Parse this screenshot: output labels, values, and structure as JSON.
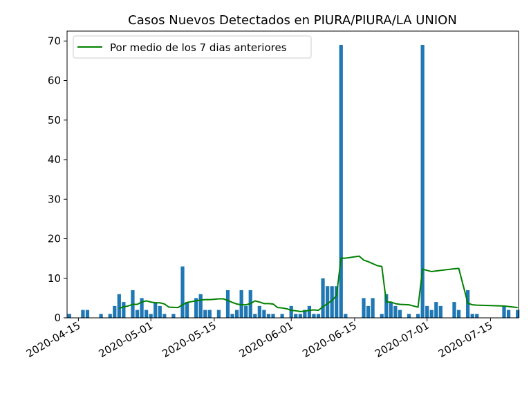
{
  "chart_data": {
    "type": "bar",
    "title": "Casos Nuevos Detectados en PIURA/PIURA/LA UNION",
    "xlabel": "",
    "ylabel": "",
    "x_start": "2020-04-13",
    "x_end": "2020-07-21",
    "ylim": [
      0,
      72.5
    ],
    "yticks": [
      0,
      10,
      20,
      30,
      40,
      50,
      60,
      70
    ],
    "xticks": [
      "2020-04-15",
      "2020-05-01",
      "2020-05-15",
      "2020-06-01",
      "2020-06-15",
      "2020-07-01",
      "2020-07-15"
    ],
    "bar_color": "#1f77b4",
    "line_color": "#008000",
    "grid": false,
    "legend_position": "upper-left",
    "series": [
      {
        "type": "bar",
        "name": "",
        "points": [
          [
            "2020-04-13",
            1
          ],
          [
            "2020-04-16",
            2
          ],
          [
            "2020-04-17",
            2
          ],
          [
            "2020-04-20",
            1
          ],
          [
            "2020-04-22",
            1
          ],
          [
            "2020-04-23",
            3
          ],
          [
            "2020-04-24",
            6
          ],
          [
            "2020-04-25",
            4
          ],
          [
            "2020-04-27",
            7
          ],
          [
            "2020-04-28",
            2
          ],
          [
            "2020-04-29",
            5
          ],
          [
            "2020-04-30",
            2
          ],
          [
            "2020-05-01",
            1
          ],
          [
            "2020-05-02",
            4
          ],
          [
            "2020-05-03",
            3
          ],
          [
            "2020-05-04",
            1
          ],
          [
            "2020-05-06",
            1
          ],
          [
            "2020-05-08",
            13
          ],
          [
            "2020-05-09",
            4
          ],
          [
            "2020-05-11",
            5
          ],
          [
            "2020-05-12",
            6
          ],
          [
            "2020-05-13",
            2
          ],
          [
            "2020-05-14",
            2
          ],
          [
            "2020-05-16",
            2
          ],
          [
            "2020-05-18",
            7
          ],
          [
            "2020-05-19",
            1
          ],
          [
            "2020-05-20",
            2
          ],
          [
            "2020-05-21",
            7
          ],
          [
            "2020-05-22",
            3
          ],
          [
            "2020-05-23",
            7
          ],
          [
            "2020-05-24",
            1
          ],
          [
            "2020-05-25",
            3
          ],
          [
            "2020-05-26",
            2
          ],
          [
            "2020-05-27",
            1
          ],
          [
            "2020-05-28",
            1
          ],
          [
            "2020-05-30",
            1
          ],
          [
            "2020-06-01",
            3
          ],
          [
            "2020-06-02",
            1
          ],
          [
            "2020-06-03",
            1
          ],
          [
            "2020-06-04",
            2
          ],
          [
            "2020-06-05",
            3
          ],
          [
            "2020-06-06",
            1
          ],
          [
            "2020-06-07",
            1
          ],
          [
            "2020-06-08",
            10
          ],
          [
            "2020-06-09",
            8
          ],
          [
            "2020-06-10",
            8
          ],
          [
            "2020-06-11",
            8
          ],
          [
            "2020-06-12",
            69
          ],
          [
            "2020-06-13",
            1
          ],
          [
            "2020-06-15",
            0
          ],
          [
            "2020-06-17",
            5
          ],
          [
            "2020-06-18",
            3
          ],
          [
            "2020-06-19",
            5
          ],
          [
            "2020-06-21",
            1
          ],
          [
            "2020-06-22",
            6
          ],
          [
            "2020-06-23",
            4
          ],
          [
            "2020-06-24",
            3
          ],
          [
            "2020-06-25",
            2
          ],
          [
            "2020-06-27",
            1
          ],
          [
            "2020-06-29",
            1
          ],
          [
            "2020-06-30",
            69
          ],
          [
            "2020-07-01",
            3
          ],
          [
            "2020-07-02",
            2
          ],
          [
            "2020-07-03",
            4
          ],
          [
            "2020-07-04",
            3
          ],
          [
            "2020-07-07",
            4
          ],
          [
            "2020-07-08",
            2
          ],
          [
            "2020-07-10",
            7
          ],
          [
            "2020-07-11",
            1
          ],
          [
            "2020-07-12",
            1
          ],
          [
            "2020-07-18",
            3
          ],
          [
            "2020-07-19",
            2
          ],
          [
            "2020-07-21",
            2
          ]
        ]
      },
      {
        "type": "line",
        "name": "Por medio de los 7 dias anteriores",
        "points": [
          [
            "2020-04-24",
            2.4
          ],
          [
            "2020-04-25",
            2.8
          ],
          [
            "2020-04-26",
            3.0
          ],
          [
            "2020-04-27",
            3.4
          ],
          [
            "2020-04-28",
            3.4
          ],
          [
            "2020-04-29",
            4.0
          ],
          [
            "2020-04-30",
            4.3
          ],
          [
            "2020-05-01",
            4.0
          ],
          [
            "2020-05-02",
            3.8
          ],
          [
            "2020-05-03",
            3.8
          ],
          [
            "2020-05-04",
            3.5
          ],
          [
            "2020-05-05",
            2.7
          ],
          [
            "2020-05-07",
            2.6
          ],
          [
            "2020-05-08",
            3.3
          ],
          [
            "2020-05-09",
            3.9
          ],
          [
            "2020-05-11",
            4.3
          ],
          [
            "2020-05-12",
            4.5
          ],
          [
            "2020-05-13",
            4.6
          ],
          [
            "2020-05-14",
            4.6
          ],
          [
            "2020-05-15",
            4.7
          ],
          [
            "2020-05-16",
            4.8
          ],
          [
            "2020-05-17",
            4.8
          ],
          [
            "2020-05-18",
            4.4
          ],
          [
            "2020-05-19",
            3.9
          ],
          [
            "2020-05-20",
            3.5
          ],
          [
            "2020-05-21",
            3.3
          ],
          [
            "2020-05-22",
            3.3
          ],
          [
            "2020-05-23",
            3.6
          ],
          [
            "2020-05-24",
            4.3
          ],
          [
            "2020-05-25",
            4.0
          ],
          [
            "2020-05-26",
            3.6
          ],
          [
            "2020-05-27",
            3.6
          ],
          [
            "2020-05-28",
            3.5
          ],
          [
            "2020-05-29",
            2.6
          ],
          [
            "2020-05-30",
            2.5
          ],
          [
            "2020-05-31",
            2.3
          ],
          [
            "2020-06-01",
            1.9
          ],
          [
            "2020-06-02",
            1.8
          ],
          [
            "2020-06-03",
            1.6
          ],
          [
            "2020-06-04",
            1.7
          ],
          [
            "2020-06-05",
            1.9
          ],
          [
            "2020-06-06",
            2.0
          ],
          [
            "2020-06-07",
            1.9
          ],
          [
            "2020-06-08",
            2.8
          ],
          [
            "2020-06-09",
            3.6
          ],
          [
            "2020-06-10",
            4.4
          ],
          [
            "2020-06-11",
            5.6
          ],
          [
            "2020-06-12",
            15.1
          ],
          [
            "2020-06-13",
            15.1
          ],
          [
            "2020-06-16",
            15.6
          ],
          [
            "2020-06-17",
            14.6
          ],
          [
            "2020-06-18",
            14.2
          ],
          [
            "2020-06-19",
            13.7
          ],
          [
            "2020-06-20",
            13.2
          ],
          [
            "2020-06-21",
            13.0
          ],
          [
            "2020-06-22",
            4.0
          ],
          [
            "2020-06-23",
            4.0
          ],
          [
            "2020-06-24",
            3.6
          ],
          [
            "2020-06-25",
            3.4
          ],
          [
            "2020-06-27",
            3.3
          ],
          [
            "2020-06-28",
            3.0
          ],
          [
            "2020-06-29",
            2.7
          ],
          [
            "2020-06-30",
            12.3
          ],
          [
            "2020-07-01",
            12.0
          ],
          [
            "2020-07-02",
            11.7
          ],
          [
            "2020-07-04",
            12.0
          ],
          [
            "2020-07-07",
            12.4
          ],
          [
            "2020-07-08",
            12.5
          ],
          [
            "2020-07-10",
            3.7
          ],
          [
            "2020-07-11",
            3.3
          ],
          [
            "2020-07-12",
            3.2
          ],
          [
            "2020-07-18",
            3.0
          ],
          [
            "2020-07-21",
            2.6
          ]
        ]
      }
    ]
  }
}
